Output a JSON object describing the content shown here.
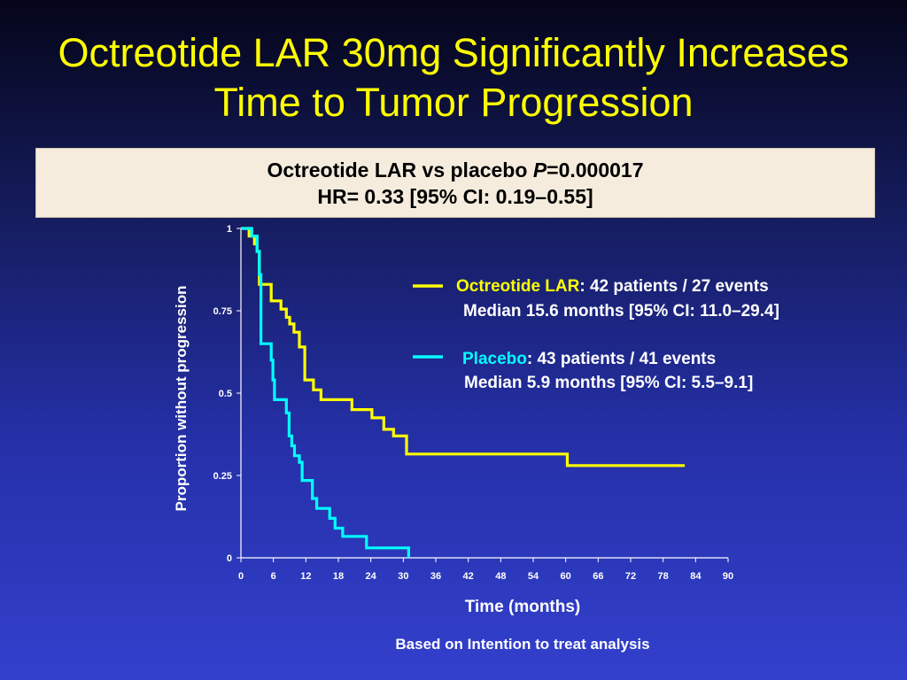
{
  "title": {
    "line1": "Octreotide LAR 30mg Significantly Increases",
    "line2": "Time to Tumor Progression"
  },
  "stats": {
    "line1_prefix": "Octreotide LAR vs placebo ",
    "p_label": "P",
    "p_value": "=0.000017",
    "line2": "HR= 0.33 [95% CI: 0.19–0.55]"
  },
  "footnote": "Based on Intention to treat analysis",
  "colors": {
    "octreotide": "#ffff00",
    "placebo": "#00ffff",
    "text": "#ffffff"
  },
  "chart_data": {
    "type": "line",
    "subtype": "kaplan-meier-step",
    "xlabel": "Time (months)",
    "ylabel": "Proportion without progression",
    "xlim": [
      0,
      90
    ],
    "ylim": [
      0,
      1
    ],
    "xticks": [
      0,
      6,
      12,
      18,
      24,
      30,
      36,
      42,
      48,
      54,
      60,
      66,
      72,
      78,
      84,
      90
    ],
    "yticks": [
      0,
      0.25,
      0.5,
      0.75,
      1
    ],
    "yticklabels": [
      "0",
      "0.25",
      "0.5",
      "0.75",
      "1"
    ],
    "grid": false,
    "legend_position": "top-right",
    "series": [
      {
        "name": "Octreotide LAR",
        "legend_suffix": ": 42 patients / 27 events",
        "legend_median": "Median 15.6 months [95% CI: 11.0–29.4]",
        "color_key": "octreotide",
        "x": [
          0,
          1.5,
          2.5,
          3.0,
          3.4,
          5.6,
          7.4,
          8.4,
          9.0,
          9.8,
          10.8,
          11.8,
          13.4,
          14.8,
          20.5,
          24.2,
          26.4,
          28.2,
          30.6,
          60.3,
          82
        ],
        "y": [
          1.0,
          0.977,
          0.953,
          0.93,
          0.83,
          0.78,
          0.755,
          0.73,
          0.71,
          0.685,
          0.64,
          0.54,
          0.51,
          0.48,
          0.45,
          0.425,
          0.39,
          0.37,
          0.315,
          0.28,
          0.28
        ]
      },
      {
        "name": "Placebo",
        "legend_suffix": ": 43  patients / 41 events",
        "legend_median": "Median 5.9 months [95% CI: 5.5–9.1]",
        "color_key": "placebo",
        "x": [
          0,
          2.0,
          3.0,
          3.4,
          3.7,
          5.6,
          5.9,
          6.2,
          8.4,
          8.9,
          9.4,
          9.9,
          10.8,
          11.3,
          13.2,
          14.0,
          15.0,
          16.4,
          17.4,
          18.8,
          21.4,
          23.2,
          30.7,
          31.0
        ],
        "y": [
          1.0,
          0.977,
          0.93,
          0.86,
          0.65,
          0.6,
          0.54,
          0.48,
          0.44,
          0.37,
          0.34,
          0.31,
          0.29,
          0.235,
          0.18,
          0.15,
          0.15,
          0.12,
          0.09,
          0.065,
          0.065,
          0.03,
          0.03,
          0.0
        ]
      }
    ]
  }
}
